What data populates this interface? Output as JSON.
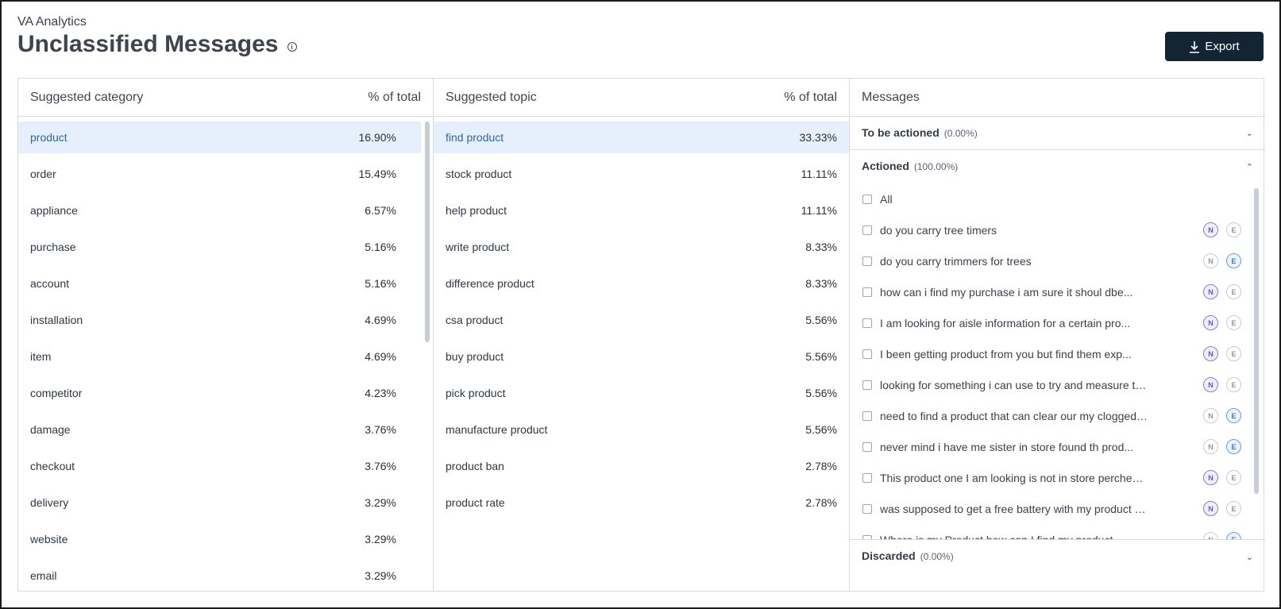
{
  "header": {
    "app_name": "VA Analytics",
    "title": "Unclassified Messages",
    "export_label": "Export"
  },
  "categories": {
    "header_label": "Suggested category",
    "header_pct": "% of total",
    "items": [
      {
        "label": "product",
        "pct": "16.90%"
      },
      {
        "label": "order",
        "pct": "15.49%"
      },
      {
        "label": "appliance",
        "pct": "6.57%"
      },
      {
        "label": "purchase",
        "pct": "5.16%"
      },
      {
        "label": "account",
        "pct": "5.16%"
      },
      {
        "label": "installation",
        "pct": "4.69%"
      },
      {
        "label": "item",
        "pct": "4.69%"
      },
      {
        "label": "competitor",
        "pct": "4.23%"
      },
      {
        "label": "damage",
        "pct": "3.76%"
      },
      {
        "label": "checkout",
        "pct": "3.76%"
      },
      {
        "label": "delivery",
        "pct": "3.29%"
      },
      {
        "label": "website",
        "pct": "3.29%"
      },
      {
        "label": "email",
        "pct": "3.29%"
      }
    ]
  },
  "topics": {
    "header_label": "Suggested topic",
    "header_pct": "% of total",
    "items": [
      {
        "label": "find product",
        "pct": "33.33%"
      },
      {
        "label": "stock product",
        "pct": "11.11%"
      },
      {
        "label": "help product",
        "pct": "11.11%"
      },
      {
        "label": "write product",
        "pct": "8.33%"
      },
      {
        "label": "difference product",
        "pct": "8.33%"
      },
      {
        "label": "csa product",
        "pct": "5.56%"
      },
      {
        "label": "buy product",
        "pct": "5.56%"
      },
      {
        "label": "pick product",
        "pct": "5.56%"
      },
      {
        "label": "manufacture product",
        "pct": "5.56%"
      },
      {
        "label": "product ban",
        "pct": "2.78%"
      },
      {
        "label": "product rate",
        "pct": "2.78%"
      }
    ]
  },
  "messages": {
    "header_label": "Messages",
    "to_be_actioned": {
      "label": "To be actioned",
      "pct": "(0.00%)"
    },
    "actioned": {
      "label": "Actioned",
      "pct": "(100.00%)"
    },
    "discarded": {
      "label": "Discarded",
      "pct": "(0.00%)"
    },
    "all_label": "All",
    "badge_n": "N",
    "badge_e": "E",
    "items": [
      {
        "text": "do you carry tree timers",
        "active": "N"
      },
      {
        "text": "do you carry trimmers for trees",
        "active": "E"
      },
      {
        "text": "how can i find my purchase i am sure it shoul dbe...",
        "active": "N"
      },
      {
        "text": "I am looking for aisle information for a certain pro...",
        "active": "N"
      },
      {
        "text": "I been getting product from you but find them exp...",
        "active": "N"
      },
      {
        "text": "looking for something i can use to try and measure th...",
        "active": "N"
      },
      {
        "text": "need to find a product that can clear our my clogged ...",
        "active": "E"
      },
      {
        "text": "never mind i have me sister in store found th prod...",
        "active": "E"
      },
      {
        "text": "This product one I am looking is not in store perches ...",
        "active": "N"
      },
      {
        "text": "was supposed to get a free battery with my product b...",
        "active": "N"
      },
      {
        "text": "Where is my Product how can I find my product",
        "active": "E"
      }
    ]
  },
  "colors": {
    "accent": "#132533",
    "selected_row": "#e6f0fd",
    "selected_text": "#2f66a8",
    "badge_n": "#6b54c8",
    "badge_e": "#3d78d3"
  }
}
